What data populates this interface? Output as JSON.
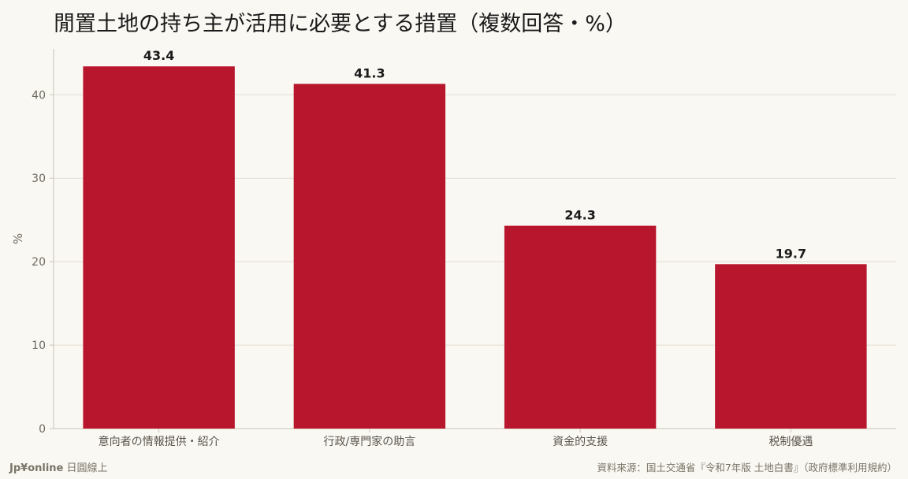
{
  "brand": {
    "name": "Jp¥online",
    "subtitle": "日圓線上"
  },
  "source": "資料來源：国土交通省『令和7年版 土地白書』（政府標準利用規約）",
  "colors": {
    "bar": "#b8162c",
    "background": "#faf8f3",
    "grid": "#e3ddd2",
    "axis": "#c9c3b8"
  },
  "chart_data": {
    "type": "bar",
    "title": "閒置土地の持ち主が活用に必要とする措置（複数回答・%）",
    "xlabel": "",
    "ylabel": "%",
    "categories": [
      "意向者の情報提供・紹介",
      "行政/専門家の助言",
      "資金的支援",
      "税制優遇"
    ],
    "values": [
      43.4,
      41.3,
      24.3,
      19.7
    ],
    "value_labels": [
      "43.4",
      "41.3",
      "24.3",
      "19.7"
    ],
    "ylim": [
      0,
      45.5
    ],
    "yticks": [
      0,
      10,
      20,
      30,
      40
    ],
    "grid": true,
    "legend": "none"
  }
}
